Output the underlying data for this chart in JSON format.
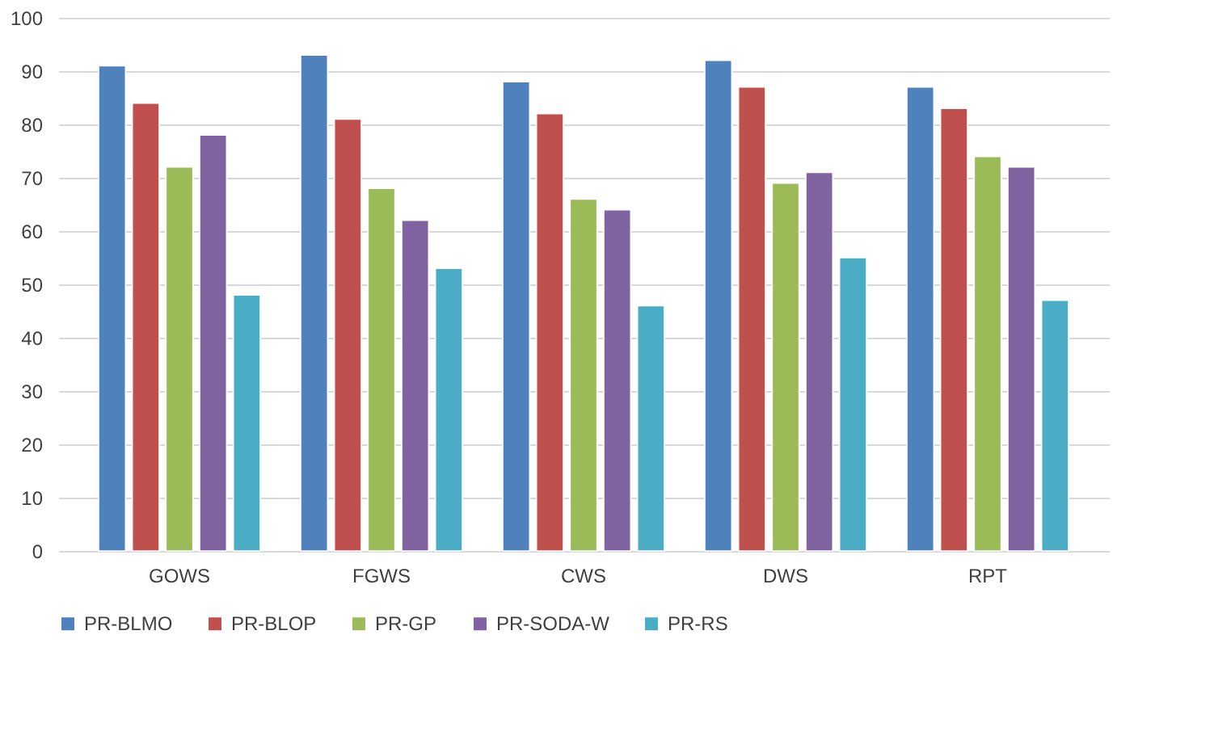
{
  "chart_data": {
    "type": "bar",
    "categories": [
      "GOWS",
      "FGWS",
      "CWS",
      "DWS",
      "RPT"
    ],
    "series": [
      {
        "name": "PR-BLMO",
        "color": "#4f81bd",
        "values": [
          91,
          93,
          88,
          92,
          87
        ]
      },
      {
        "name": "PR-BLOP",
        "color": "#c0504d",
        "values": [
          84,
          81,
          82,
          87,
          83
        ]
      },
      {
        "name": "PR-GP",
        "color": "#9bbb59",
        "values": [
          72,
          68,
          66,
          69,
          74
        ]
      },
      {
        "name": "PR-SODA-W",
        "color": "#8064a2",
        "values": [
          78,
          62,
          64,
          71,
          72
        ]
      },
      {
        "name": "PR-RS",
        "color": "#4bacc6",
        "values": [
          48,
          53,
          46,
          55,
          47
        ]
      }
    ],
    "ylim": [
      0,
      100
    ],
    "yticks": [
      0,
      10,
      20,
      30,
      40,
      50,
      60,
      70,
      80,
      90,
      100
    ],
    "grid": "y",
    "legend": "bottom"
  }
}
